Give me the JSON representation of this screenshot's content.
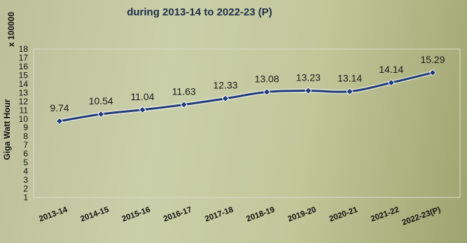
{
  "chart_data": {
    "type": "line",
    "title": "during 2013-14 to 2022-23 (P)",
    "multiplier": "x 100000",
    "ylabel": "Giga Watt Hour",
    "xlabel": "",
    "ylim": [
      1,
      18
    ],
    "yticks": [
      1,
      2,
      3,
      4,
      5,
      6,
      7,
      8,
      9,
      10,
      11,
      12,
      13,
      14,
      15,
      16,
      17,
      18
    ],
    "grid": false,
    "legend": "none",
    "line_color": "#1f3a7a",
    "categories": [
      "2013-14",
      "2014-15",
      "2015-16",
      "2016-17",
      "2017-18",
      "2018-19",
      "2019-20",
      "2020-21",
      "2021-22",
      "2022-23(P)"
    ],
    "series": [
      {
        "values": [
          9.74,
          10.54,
          11.04,
          11.63,
          12.33,
          13.08,
          13.23,
          13.14,
          14.14,
          15.29
        ],
        "labels": [
          "9.74",
          "10.54",
          "11.04",
          "11.63",
          "12.33",
          "13.08",
          "13.23",
          "13.14",
          "14.14",
          "15.29"
        ]
      }
    ]
  }
}
